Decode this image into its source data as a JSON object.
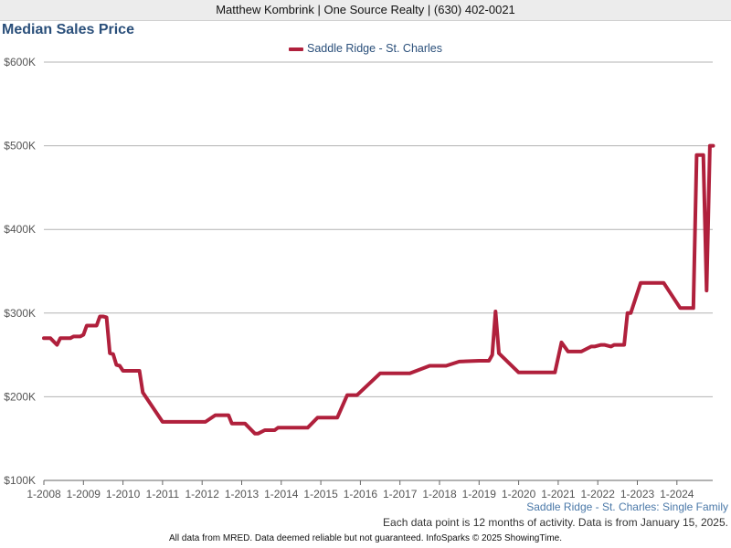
{
  "header": {
    "agent_line": "Matthew Kombrink | One Source Realty | (630) 402-0021"
  },
  "chart_title": "Median Sales Price",
  "series_caption": "Saddle Ridge - St. Charles: Single Family",
  "note": "Each data point is 12 months of activity. Data is from January 15, 2025.",
  "footer": "All data from MRED. Data deemed reliable but not guaranteed. InfoSparks © 2025 ShowingTime.",
  "colors": {
    "series": "#b0203c",
    "title": "#2a4f7a",
    "grid": "#b3b3b3",
    "caption": "#4a78a8"
  },
  "chart_data": {
    "type": "line",
    "title": "Median Sales Price",
    "ylim": [
      100000,
      600000
    ],
    "y_ticks": [
      100000,
      200000,
      300000,
      400000,
      500000,
      600000
    ],
    "y_tick_labels": [
      "$100K",
      "$200K",
      "$300K",
      "$400K",
      "$500K",
      "$600K"
    ],
    "x_ticks": [
      2008,
      2009,
      2010,
      2011,
      2012,
      2013,
      2014,
      2015,
      2016,
      2017,
      2018,
      2019,
      2020,
      2021,
      2022,
      2023,
      2024
    ],
    "x_tick_labels": [
      "1-2008",
      "1-2009",
      "1-2010",
      "1-2011",
      "1-2012",
      "1-2013",
      "1-2014",
      "1-2015",
      "1-2016",
      "1-2017",
      "1-2018",
      "1-2019",
      "1-2020",
      "1-2021",
      "1-2022",
      "1-2023",
      "1-2024"
    ],
    "grid": true,
    "legend_position": "top-center",
    "series": [
      {
        "name": "Saddle Ridge - St. Charles",
        "x": [
          "2008-01",
          "2008-03",
          "2008-05",
          "2008-06",
          "2008-07",
          "2008-09",
          "2008-10",
          "2008-12",
          "2009-01",
          "2009-02",
          "2009-04",
          "2009-05",
          "2009-06",
          "2009-07",
          "2009-08",
          "2009-09",
          "2009-10",
          "2009-11",
          "2009-12",
          "2010-01",
          "2010-05",
          "2010-06",
          "2010-07",
          "2011-01",
          "2011-05",
          "2011-07",
          "2011-12",
          "2012-02",
          "2012-05",
          "2012-06",
          "2012-09",
          "2012-10",
          "2013-01",
          "2013-02",
          "2013-05",
          "2013-06",
          "2013-08",
          "2013-09",
          "2013-11",
          "2013-12",
          "2014-06",
          "2014-09",
          "2014-12",
          "2015-05",
          "2015-06",
          "2015-09",
          "2015-12",
          "2016-07",
          "2017-04",
          "2017-10",
          "2018-01",
          "2018-03",
          "2018-07",
          "2019-01",
          "2019-03",
          "2019-04",
          "2019-05",
          "2019-06",
          "2019-07",
          "2020-01",
          "2020-12",
          "2021-02",
          "2021-04",
          "2021-08",
          "2021-11",
          "2021-12",
          "2022-02",
          "2022-03",
          "2022-05",
          "2022-06",
          "2022-09",
          "2022-10",
          "2022-11",
          "2023-02",
          "2023-09",
          "2024-02",
          "2024-06",
          "2024-07",
          "2024-09",
          "2024-10",
          "2024-11",
          "2024-12"
        ],
        "values": [
          270000,
          270000,
          262000,
          270000,
          270000,
          270000,
          272000,
          272000,
          274000,
          285000,
          285000,
          285000,
          296000,
          296000,
          295000,
          252000,
          251000,
          238000,
          237000,
          231000,
          231000,
          231000,
          205000,
          170000,
          170000,
          170000,
          170000,
          170000,
          178000,
          178000,
          178000,
          168000,
          168000,
          168000,
          156000,
          156000,
          160000,
          160000,
          160000,
          163000,
          163000,
          163000,
          175000,
          175000,
          175000,
          202000,
          202000,
          228000,
          228000,
          237000,
          237000,
          237000,
          242000,
          243000,
          243000,
          243000,
          250000,
          302000,
          252000,
          229000,
          229000,
          265000,
          254000,
          254000,
          260000,
          260000,
          262000,
          262000,
          260000,
          262000,
          262000,
          300000,
          300000,
          336000,
          336000,
          306000,
          306000,
          489000,
          489000,
          327000,
          500000,
          500000
        ]
      }
    ]
  }
}
